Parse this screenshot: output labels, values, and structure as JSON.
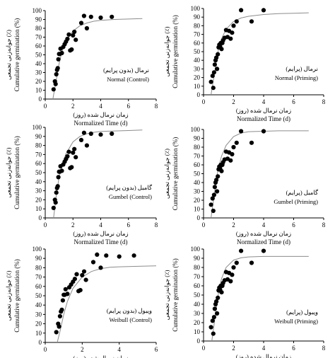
{
  "chart_data": [
    {
      "type": "scatter",
      "title": "",
      "xlabel_fa": "زمان نرمال شده (روز)",
      "xlabel": "Normalized Time (d)",
      "ylabel_fa": "جوانه‌زنی تجمعی (٪)",
      "ylabel": "Cumulative germination (%)",
      "legend_fa": "نرمال (بدون پرایم)",
      "legend": "Normal (Control)",
      "xlim": [
        0,
        8
      ],
      "ylim": [
        0,
        100
      ],
      "xticks": [
        "0",
        "2",
        "4",
        "6",
        "8"
      ],
      "yticks": [
        "0",
        "10",
        "20",
        "30",
        "40",
        "50",
        "60",
        "70",
        "80",
        "90",
        "100"
      ],
      "points": {
        "x": [
          0.6,
          0.7,
          0.75,
          0.8,
          0.85,
          0.9,
          0.95,
          1.0,
          1.05,
          1.1,
          1.2,
          1.3,
          1.4,
          1.5,
          1.6,
          1.7,
          1.8,
          1.9,
          2.0,
          2.1,
          2.2,
          2.6,
          2.8,
          3.0,
          3.3,
          4.0,
          4.8
        ],
        "y": [
          11,
          20,
          17,
          28,
          33,
          35,
          45,
          51,
          51,
          57,
          52,
          59,
          62,
          65,
          68,
          73,
          55,
          56,
          72,
          76,
          67,
          86,
          94,
          80,
          93,
          92,
          93
        ]
      },
      "fit": {
        "x": [
          0.55,
          0.8,
          1.0,
          1.2,
          1.5,
          2.0,
          2.5,
          3.0,
          3.5,
          4.0,
          5.0,
          6.0,
          7.0
        ],
        "y": [
          0,
          22,
          40,
          53,
          66,
          77,
          83,
          86,
          88,
          89,
          90,
          90.5,
          91
        ]
      }
    },
    {
      "type": "scatter",
      "title": "",
      "xlabel_fa": "زمان نرمال شده (روز)",
      "xlabel": "Normalized Time (d)",
      "ylabel_fa": "جوانه‌زنی تجمعی (٪)",
      "ylabel": "Cumulative germination (%)",
      "legend_fa": "نرمال (پرایم)",
      "legend": "Normal (Priming)",
      "xlim": [
        0,
        8
      ],
      "ylim": [
        0,
        100
      ],
      "xticks": [
        "0",
        "2",
        "4",
        "6",
        "8"
      ],
      "yticks": [
        "0",
        "10",
        "20",
        "30",
        "40",
        "50",
        "60",
        "70",
        "80",
        "90",
        "100"
      ],
      "points": {
        "x": [
          0.5,
          0.6,
          0.65,
          0.7,
          0.75,
          0.8,
          0.85,
          0.9,
          0.95,
          1.0,
          1.05,
          1.1,
          1.15,
          1.2,
          1.25,
          1.3,
          1.4,
          1.5,
          1.6,
          1.7,
          1.8,
          1.9,
          2.0,
          2.2,
          2.5,
          3.2,
          4.0
        ],
        "y": [
          15,
          22,
          8,
          26,
          35,
          40,
          43,
          30,
          47,
          55,
          58,
          56,
          60,
          53,
          60,
          63,
          66,
          75,
          67,
          74,
          65,
          72,
          80,
          85,
          98,
          85,
          98
        ]
      },
      "fit": {
        "x": [
          0.5,
          0.7,
          0.9,
          1.0,
          1.2,
          1.5,
          2.0,
          2.5,
          3.0,
          4.0,
          5.0,
          6.0,
          7.0
        ],
        "y": [
          0,
          22,
          44,
          53,
          65,
          76,
          85,
          89,
          91,
          93,
          94,
          94.5,
          95
        ]
      }
    },
    {
      "type": "scatter",
      "title": "",
      "xlabel_fa": "زمان نرمال شده (روز)",
      "xlabel": "Normalized Time (d)",
      "ylabel_fa": "جوانه‌زنی تجمعی (٪)",
      "ylabel": "Cumulative germination (%)",
      "legend_fa": "گامبل (بدون پرایم)",
      "legend": "Gumbel (Control)",
      "xlim": [
        0,
        8
      ],
      "ylim": [
        0,
        100
      ],
      "xticks": [
        "0",
        "2",
        "4",
        "6",
        "8"
      ],
      "yticks": [
        "0",
        "10",
        "20",
        "30",
        "40",
        "50",
        "60",
        "70",
        "80",
        "90",
        "100"
      ],
      "points": {
        "x": [
          0.6,
          0.7,
          0.75,
          0.8,
          0.85,
          0.9,
          0.95,
          1.0,
          1.05,
          1.1,
          1.2,
          1.3,
          1.4,
          1.5,
          1.6,
          1.7,
          1.8,
          1.9,
          2.0,
          2.1,
          2.2,
          2.6,
          2.8,
          3.0,
          3.3,
          4.0,
          4.8
        ],
        "y": [
          11,
          20,
          17,
          28,
          33,
          35,
          45,
          51,
          51,
          57,
          52,
          59,
          62,
          65,
          68,
          73,
          55,
          56,
          72,
          76,
          67,
          86,
          94,
          80,
          93,
          92,
          93
        ]
      },
      "fit": {
        "x": [
          0.6,
          0.8,
          1.0,
          1.2,
          1.5,
          2.0,
          2.5,
          3.0,
          3.5,
          4.0,
          5.0,
          6.0,
          7.0
        ],
        "y": [
          0,
          25,
          45,
          58,
          71,
          84,
          90,
          93,
          94.5,
          95.5,
          96,
          96.5,
          97
        ]
      }
    },
    {
      "type": "scatter",
      "title": "",
      "xlabel_fa": "زمان نرمال شده (روز)",
      "xlabel": "Normalized Time (d)",
      "ylabel_fa": "جوانه‌زنی تجمعی (٪)",
      "ylabel": "Cumulative germination (%)",
      "legend_fa": "گامبل (پرایم)",
      "legend": "Gumbel (Priming)",
      "xlim": [
        0,
        8
      ],
      "ylim": [
        0,
        100
      ],
      "xticks": [
        "0",
        "2",
        "4",
        "6",
        "8"
      ],
      "yticks": [
        "0",
        "10",
        "20",
        "30",
        "40",
        "50",
        "60",
        "70",
        "80",
        "90",
        "100"
      ],
      "points": {
        "x": [
          0.5,
          0.6,
          0.65,
          0.7,
          0.75,
          0.8,
          0.85,
          0.9,
          0.95,
          1.0,
          1.05,
          1.1,
          1.15,
          1.2,
          1.25,
          1.3,
          1.4,
          1.5,
          1.6,
          1.7,
          1.8,
          1.9,
          2.0,
          2.2,
          2.5,
          3.2,
          4.0
        ],
        "y": [
          15,
          22,
          8,
          26,
          35,
          40,
          43,
          30,
          47,
          55,
          58,
          56,
          60,
          53,
          60,
          63,
          66,
          75,
          67,
          74,
          65,
          72,
          80,
          85,
          98,
          85,
          98
        ]
      },
      "fit": {
        "x": [
          0.5,
          0.7,
          0.9,
          1.0,
          1.2,
          1.5,
          2.0,
          2.5,
          3.0,
          4.0,
          5.0,
          6.0,
          7.0
        ],
        "y": [
          0,
          25,
          48,
          57,
          70,
          82,
          92,
          96,
          97.5,
          98,
          98.5,
          98.5,
          98.5
        ]
      }
    },
    {
      "type": "scatter",
      "title": "",
      "xlabel_fa": "زمان نرمال شده (روز)",
      "xlabel": "Normalized Time (d)",
      "ylabel_fa": "جوانه‌زنی تجمعی (٪)",
      "ylabel": "Cumulative germination (%)",
      "legend_fa": "ویبول (بدون پرایم)",
      "legend": "Weibull (Control)",
      "xlim": [
        0,
        6
      ],
      "ylim": [
        0,
        100
      ],
      "xticks": [
        "0",
        "2",
        "4",
        "6"
      ],
      "yticks": [
        "0",
        "10",
        "20",
        "30",
        "40",
        "50",
        "60",
        "70",
        "80",
        "90",
        "100"
      ],
      "points": {
        "x": [
          0.6,
          0.7,
          0.75,
          0.8,
          0.85,
          0.9,
          0.95,
          1.0,
          1.05,
          1.1,
          1.2,
          1.3,
          1.4,
          1.5,
          1.6,
          1.7,
          1.8,
          1.9,
          2.0,
          2.1,
          2.2,
          2.6,
          2.8,
          3.0,
          3.3,
          4.0,
          4.8
        ],
        "y": [
          11,
          20,
          17,
          28,
          33,
          35,
          45,
          51,
          51,
          57,
          52,
          59,
          62,
          65,
          68,
          73,
          55,
          56,
          72,
          76,
          67,
          86,
          94,
          80,
          93,
          92,
          93
        ]
      },
      "fit": {
        "x": [
          0.65,
          0.8,
          1.0,
          1.2,
          1.5,
          2.0,
          2.5,
          3.0,
          3.5,
          4.0,
          5.0,
          6.0
        ],
        "y": [
          0,
          12,
          30,
          44,
          58,
          70,
          76,
          79,
          80.5,
          81,
          81.5,
          82
        ]
      }
    },
    {
      "type": "scatter",
      "title": "",
      "xlabel_fa": "زمان نرمال شده (روز)",
      "xlabel": "Normalized Time (d)",
      "ylabel_fa": "جوانه‌زنی تجمعی (٪)",
      "ylabel": "Cumulative germination (%)",
      "legend_fa": "ویبول (پرایم)",
      "legend": "Weibull (Priming)",
      "xlim": [
        0,
        8
      ],
      "ylim": [
        0,
        100
      ],
      "xticks": [
        "0",
        "2",
        "4",
        "6",
        "8"
      ],
      "yticks": [
        "0",
        "10",
        "20",
        "30",
        "40",
        "50",
        "60",
        "70",
        "80",
        "90",
        "100"
      ],
      "points": {
        "x": [
          0.5,
          0.6,
          0.65,
          0.7,
          0.75,
          0.8,
          0.85,
          0.9,
          0.95,
          1.0,
          1.05,
          1.1,
          1.15,
          1.2,
          1.25,
          1.3,
          1.4,
          1.5,
          1.6,
          1.7,
          1.8,
          1.9,
          2.0,
          2.2,
          2.5,
          3.2,
          4.0
        ],
        "y": [
          15,
          22,
          8,
          26,
          35,
          40,
          43,
          30,
          47,
          55,
          58,
          56,
          60,
          53,
          60,
          63,
          66,
          75,
          67,
          74,
          65,
          72,
          80,
          85,
          98,
          85,
          98
        ]
      },
      "fit": {
        "x": [
          0.55,
          0.7,
          0.9,
          1.0,
          1.2,
          1.5,
          2.0,
          2.5,
          3.0,
          4.0,
          5.0,
          6.0,
          7.0
        ],
        "y": [
          0,
          18,
          42,
          53,
          68,
          80,
          88,
          90.5,
          91.5,
          92,
          92,
          92,
          92
        ]
      }
    }
  ]
}
